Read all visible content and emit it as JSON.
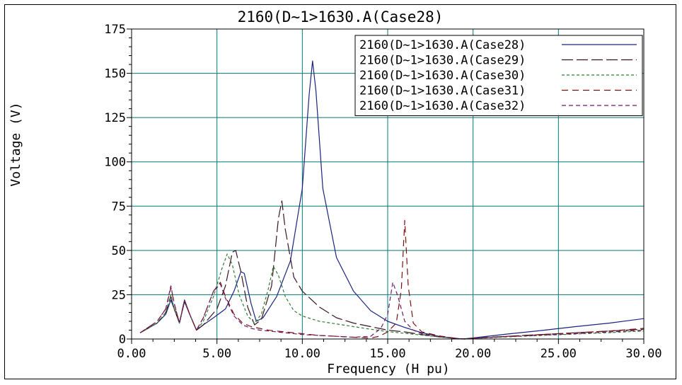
{
  "chart_data": {
    "type": "line",
    "title": "2160(D~1>1630.A(Case28)",
    "xlabel": "Frequency (H pu)",
    "ylabel": "Voltage (V)",
    "xlim": [
      0,
      30
    ],
    "ylim": [
      0,
      175
    ],
    "x_ticks": [
      "0.00",
      "5.00",
      "10.00",
      "15.00",
      "20.00",
      "25.00",
      "30.00"
    ],
    "y_ticks": [
      "0",
      "25",
      "50",
      "75",
      "100",
      "125",
      "150",
      "175"
    ],
    "grid": true,
    "legend_position": "top-right",
    "series": [
      {
        "name": "2160(D~1>1630.A(Case28)",
        "color": "#1a237e",
        "dash": "solid",
        "points": [
          [
            0.5,
            3.5
          ],
          [
            1.5,
            9
          ],
          [
            2.0,
            14
          ],
          [
            2.3,
            22
          ],
          [
            2.5,
            17
          ],
          [
            2.8,
            9
          ],
          [
            3.1,
            21
          ],
          [
            3.4,
            14
          ],
          [
            3.8,
            5
          ],
          [
            4.2,
            8
          ],
          [
            4.8,
            12
          ],
          [
            5.5,
            17
          ],
          [
            6.0,
            27
          ],
          [
            6.4,
            38
          ],
          [
            6.6,
            37
          ],
          [
            7.0,
            20
          ],
          [
            7.3,
            10
          ],
          [
            7.7,
            12
          ],
          [
            8.5,
            24
          ],
          [
            9.3,
            44
          ],
          [
            10.0,
            85
          ],
          [
            10.4,
            138
          ],
          [
            10.6,
            157
          ],
          [
            10.8,
            140
          ],
          [
            11.2,
            85
          ],
          [
            12.0,
            46
          ],
          [
            13.0,
            27
          ],
          [
            14.0,
            16
          ],
          [
            15.0,
            10
          ],
          [
            16.0,
            6.5
          ],
          [
            17.0,
            3.5
          ],
          [
            18.0,
            1.5
          ],
          [
            19.0,
            0.2
          ],
          [
            19.4,
            0
          ],
          [
            20.0,
            0.6
          ],
          [
            22.0,
            2.8
          ],
          [
            24.0,
            4.8
          ],
          [
            26.0,
            7
          ],
          [
            28.0,
            9
          ],
          [
            30.0,
            11.5
          ]
        ]
      },
      {
        "name": "2160(D~1>1630.A(Case29)",
        "color": "#3a1520",
        "dash": "16 5",
        "points": [
          [
            0.5,
            3.5
          ],
          [
            1.5,
            9
          ],
          [
            2.0,
            15
          ],
          [
            2.3,
            24
          ],
          [
            2.5,
            17
          ],
          [
            2.8,
            9
          ],
          [
            3.1,
            22
          ],
          [
            3.4,
            14
          ],
          [
            3.8,
            5
          ],
          [
            4.2,
            8
          ],
          [
            5.0,
            17
          ],
          [
            5.5,
            30
          ],
          [
            5.9,
            49
          ],
          [
            6.1,
            50
          ],
          [
            6.4,
            38
          ],
          [
            6.8,
            18
          ],
          [
            7.2,
            8
          ],
          [
            7.6,
            11
          ],
          [
            8.2,
            30
          ],
          [
            8.6,
            68
          ],
          [
            8.8,
            78
          ],
          [
            9.0,
            62
          ],
          [
            9.5,
            35
          ],
          [
            10.0,
            27
          ],
          [
            11.0,
            18
          ],
          [
            12.0,
            12
          ],
          [
            13.0,
            9
          ],
          [
            14.0,
            7
          ],
          [
            15.0,
            5
          ],
          [
            16.0,
            4
          ],
          [
            17.0,
            2.5
          ],
          [
            18.0,
            1.2
          ],
          [
            19.0,
            0.3
          ],
          [
            19.5,
            0
          ],
          [
            20.0,
            0.4
          ],
          [
            22.0,
            1.5
          ],
          [
            24.0,
            2.5
          ],
          [
            26.0,
            3.5
          ],
          [
            28.0,
            4.5
          ],
          [
            30.0,
            5.5
          ]
        ]
      },
      {
        "name": "2160(D~1>1630.A(Case30)",
        "color": "#2e7d32",
        "dash": "4 3",
        "points": [
          [
            0.5,
            3.5
          ],
          [
            1.5,
            9
          ],
          [
            2.0,
            15
          ],
          [
            2.3,
            25
          ],
          [
            2.5,
            17
          ],
          [
            2.8,
            9
          ],
          [
            3.1,
            22
          ],
          [
            3.4,
            14
          ],
          [
            3.8,
            5
          ],
          [
            4.2,
            10
          ],
          [
            4.8,
            24
          ],
          [
            5.3,
            40
          ],
          [
            5.6,
            48
          ],
          [
            5.9,
            42
          ],
          [
            6.3,
            25
          ],
          [
            6.8,
            13
          ],
          [
            7.2,
            9
          ],
          [
            7.6,
            14
          ],
          [
            8.0,
            28
          ],
          [
            8.3,
            41
          ],
          [
            8.6,
            36
          ],
          [
            9.0,
            24
          ],
          [
            9.5,
            16
          ],
          [
            10.0,
            13
          ],
          [
            11.0,
            10
          ],
          [
            12.0,
            8.5
          ],
          [
            13.0,
            7
          ],
          [
            14.0,
            5.5
          ],
          [
            15.0,
            4.2
          ],
          [
            16.0,
            3.2
          ],
          [
            17.0,
            2.2
          ],
          [
            18.0,
            1.2
          ],
          [
            19.0,
            0.3
          ],
          [
            19.5,
            0
          ],
          [
            20.0,
            0.3
          ],
          [
            22.0,
            1.2
          ],
          [
            24.0,
            2
          ],
          [
            26.0,
            2.8
          ],
          [
            28.0,
            3.6
          ],
          [
            30.0,
            4.5
          ]
        ]
      },
      {
        "name": "2160(D~1>1630.A(Case31)",
        "color": "#7b1010",
        "dash": "9 6",
        "points": [
          [
            0.5,
            3.5
          ],
          [
            1.5,
            10
          ],
          [
            2.0,
            17
          ],
          [
            2.3,
            29
          ],
          [
            2.5,
            20
          ],
          [
            2.8,
            9
          ],
          [
            3.1,
            22
          ],
          [
            3.4,
            14
          ],
          [
            3.8,
            5
          ],
          [
            4.2,
            12
          ],
          [
            4.8,
            27
          ],
          [
            5.2,
            32
          ],
          [
            5.5,
            24
          ],
          [
            6.0,
            14
          ],
          [
            6.5,
            9
          ],
          [
            7.0,
            7
          ],
          [
            7.5,
            6
          ],
          [
            8.0,
            5
          ],
          [
            9.0,
            4
          ],
          [
            10.0,
            3
          ],
          [
            11.0,
            2
          ],
          [
            12.0,
            1.5
          ],
          [
            13.0,
            1
          ],
          [
            14.0,
            0.5
          ],
          [
            14.5,
            1.5
          ],
          [
            15.0,
            4
          ],
          [
            15.5,
            9
          ],
          [
            15.8,
            28
          ],
          [
            16.0,
            67
          ],
          [
            16.2,
            30
          ],
          [
            16.5,
            9
          ],
          [
            17.0,
            4
          ],
          [
            18.0,
            1.8
          ],
          [
            19.0,
            0.4
          ],
          [
            19.5,
            0
          ],
          [
            20.0,
            0.5
          ],
          [
            22.0,
            1.5
          ],
          [
            24.0,
            2.5
          ],
          [
            26.0,
            3.5
          ],
          [
            28.0,
            4.5
          ],
          [
            30.0,
            6
          ]
        ]
      },
      {
        "name": "2160(D~1>1630.A(Case32)",
        "color": "#6a1b6a",
        "dash": "6 4",
        "points": [
          [
            0.5,
            3.5
          ],
          [
            1.5,
            10
          ],
          [
            2.0,
            17
          ],
          [
            2.3,
            30
          ],
          [
            2.5,
            20
          ],
          [
            2.8,
            9
          ],
          [
            3.1,
            22
          ],
          [
            3.4,
            14
          ],
          [
            3.8,
            5
          ],
          [
            4.2,
            12
          ],
          [
            4.8,
            27
          ],
          [
            5.2,
            31
          ],
          [
            5.5,
            23
          ],
          [
            6.0,
            13
          ],
          [
            6.5,
            8
          ],
          [
            7.0,
            6
          ],
          [
            7.5,
            5
          ],
          [
            8.0,
            4.5
          ],
          [
            9.0,
            3.5
          ],
          [
            10.0,
            2.5
          ],
          [
            11.0,
            2
          ],
          [
            12.0,
            1.5
          ],
          [
            13.0,
            1
          ],
          [
            14.0,
            1.5
          ],
          [
            14.6,
            6
          ],
          [
            15.0,
            14
          ],
          [
            15.3,
            32
          ],
          [
            15.6,
            24
          ],
          [
            16.0,
            10
          ],
          [
            16.5,
            5
          ],
          [
            17.0,
            3
          ],
          [
            18.0,
            1.5
          ],
          [
            19.0,
            0.4
          ],
          [
            19.5,
            0
          ],
          [
            20.0,
            0.4
          ],
          [
            22.0,
            1.3
          ],
          [
            24.0,
            2.2
          ],
          [
            26.0,
            3
          ],
          [
            28.0,
            4
          ],
          [
            30.0,
            5
          ]
        ]
      }
    ]
  }
}
